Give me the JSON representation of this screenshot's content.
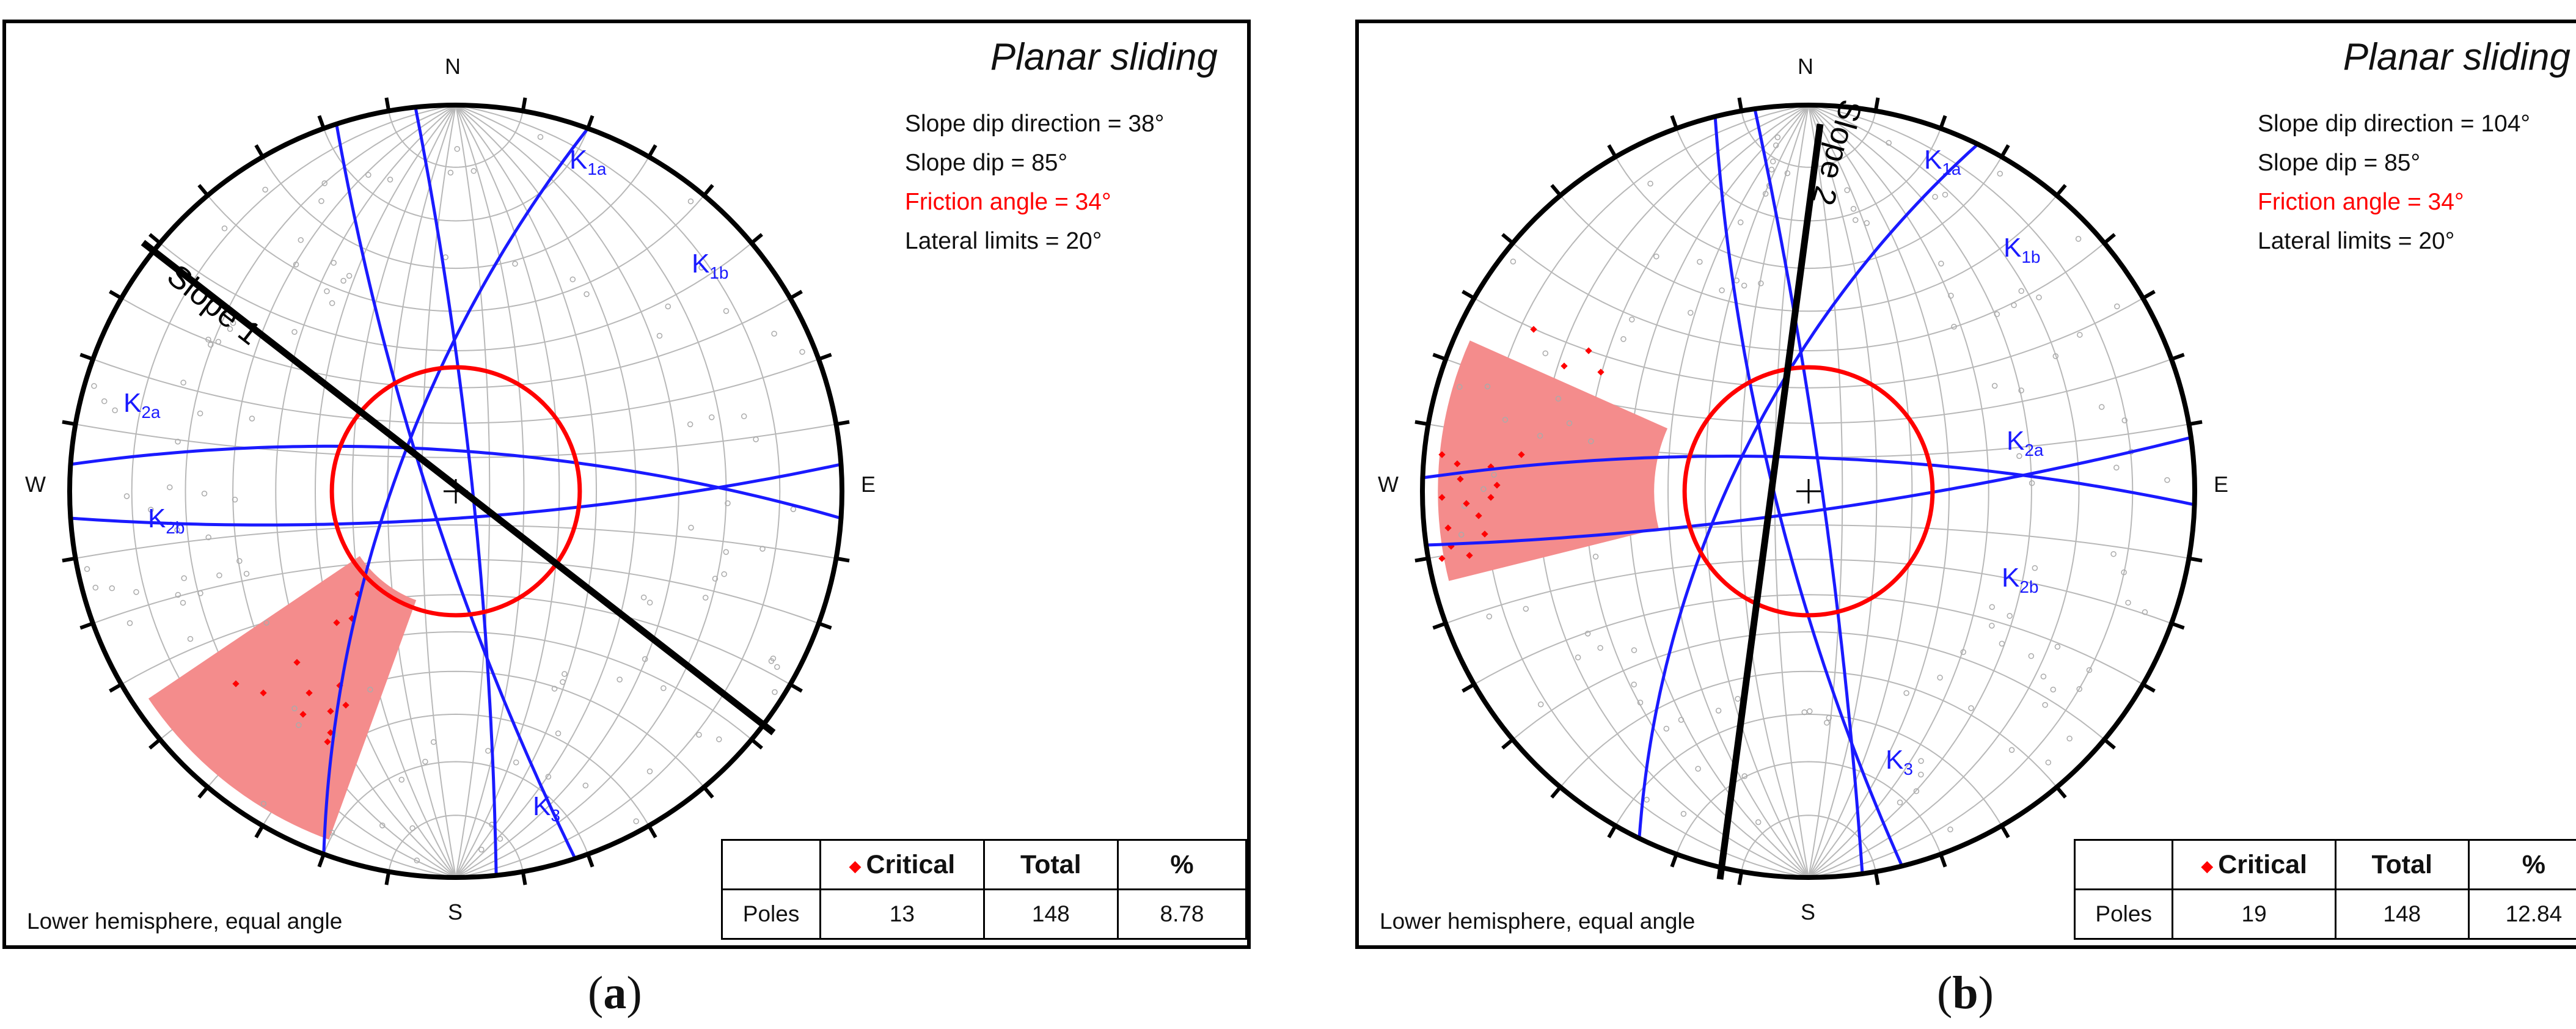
{
  "panels": [
    {
      "id": "a",
      "title": "Planar sliding",
      "info": {
        "slope_dip_direction": "Slope dip direction = 38°",
        "slope_dip": "Slope dip = 85°",
        "friction_angle": "Friction angle = 34°",
        "lateral_limits": "Lateral limits = 20°"
      },
      "compass": {
        "north": "N",
        "south": "S",
        "east": "E",
        "west": "W"
      },
      "slope_label": "Slope 1",
      "footnote": "Lower hemisphere, equal angle",
      "table": {
        "headers": [
          "",
          "Critical",
          "Total",
          "%"
        ],
        "row": [
          "Poles",
          "13",
          "148",
          "8.78"
        ]
      },
      "caption": "a"
    },
    {
      "id": "b",
      "title": "Planar sliding",
      "info": {
        "slope_dip_direction": "Slope dip direction = 104°",
        "slope_dip": "Slope dip = 85°",
        "friction_angle": "Friction angle = 34°",
        "lateral_limits": "Lateral limits = 20°"
      },
      "compass": {
        "north": "N",
        "south": "S",
        "east": "E",
        "west": "W"
      },
      "slope_label": "Slope 2",
      "footnote": "Lower hemisphere, equal angle",
      "table": {
        "headers": [
          "",
          "Critical",
          "Total",
          "%"
        ],
        "row": [
          "Poles",
          "19",
          "148",
          "12.84"
        ]
      },
      "caption": "b"
    }
  ],
  "joint_sets": {
    "labels": [
      "K",
      "K",
      "K",
      "K",
      "K"
    ],
    "subscripts": [
      "1a",
      "1b",
      "2a",
      "2b",
      "3"
    ]
  },
  "colors": {
    "planes": "#1a1aff",
    "friction_circle": "#ff0000",
    "critical_zone": "#f48c8c",
    "critical_poles": "#ff0000",
    "grid": "#b8b8b8"
  }
}
